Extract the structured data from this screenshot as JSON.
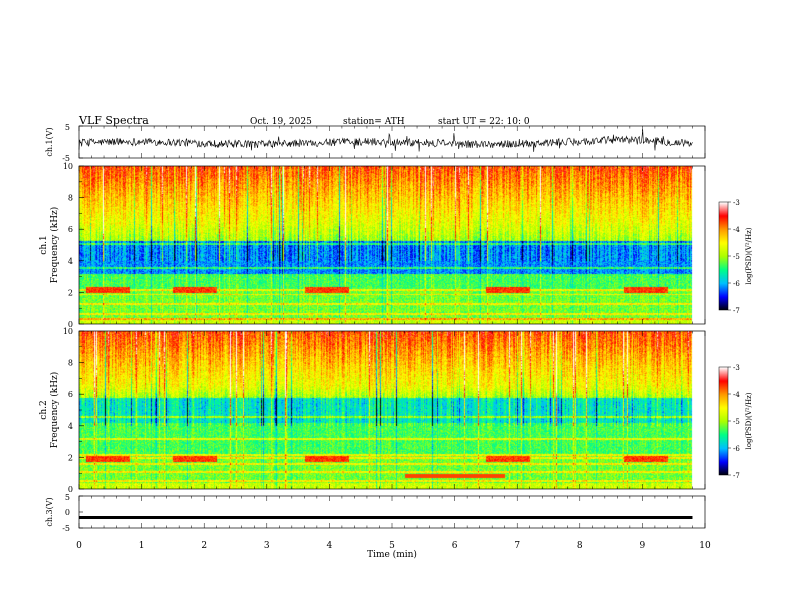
{
  "chart_data": {
    "type": "heatmap",
    "header": {
      "title": "VLF  Spectra",
      "date": "Oct. 19, 2025",
      "station": "station= ATH",
      "start_ut": "start  UT  =    22: 10: 0"
    },
    "x_axis": {
      "label": "Time  (min)",
      "range": [
        0,
        10
      ],
      "ticks": [
        "0",
        "1",
        "2",
        "3",
        "4",
        "5",
        "6",
        "7",
        "8",
        "9",
        "10"
      ]
    },
    "panels": [
      {
        "id": "ch1-waveform",
        "type": "line",
        "ylabel": "ch.1(V)",
        "ylim": [
          -5,
          5
        ],
        "tick_labels": [
          "5",
          "-5"
        ],
        "description_values": {
          "mean_v": -0.3,
          "noise_amplitude_v": 1.2,
          "drift_peak_min": 8.9,
          "drift_peak_v": 0.8
        }
      },
      {
        "id": "ch1-spectrogram",
        "type": "heatmap",
        "ylabel": "ch.1\nFrequency  (kHz)",
        "ylim": [
          0,
          10
        ],
        "tick_labels": [
          "0",
          "2",
          "4",
          "6",
          "8",
          "10"
        ],
        "band_low_khz": 3.2,
        "band_high_khz": 5.3
      },
      {
        "id": "ch2-spectrogram",
        "type": "heatmap",
        "ylabel": "ch.2\nFrequency  (kHz)",
        "ylim": [
          0,
          10
        ],
        "tick_labels": [
          "0",
          "2",
          "4",
          "6",
          "8",
          "10"
        ],
        "band_low_khz": 4.2,
        "band_high_khz": 5.8
      },
      {
        "id": "ch3-waveform",
        "type": "line",
        "ylabel": "ch.3(V)",
        "ylim": [
          -5,
          5
        ],
        "tick_labels": [
          "5",
          "0",
          "-5"
        ],
        "description_values": {
          "constant_v": -1.7
        }
      }
    ],
    "colorbars": [
      {
        "id": "ch1-colorbar",
        "label": "log(PSD)(V²/Hz)",
        "range": [
          -7,
          -3
        ],
        "ticks": [
          "-3",
          "-4",
          "-5",
          "-6",
          "-7"
        ]
      },
      {
        "id": "ch2-colorbar",
        "label": "log(PSD)(V²/Hz)",
        "range": [
          -7,
          -3
        ],
        "ticks": [
          "-3",
          "-4",
          "-5",
          "-6",
          "-7"
        ]
      }
    ],
    "colormap": [
      "#000000",
      "#0000ff",
      "#00bfff",
      "#00ff88",
      "#aaff00",
      "#ffff00",
      "#ff9900",
      "#ff0000",
      "#ffffff"
    ]
  }
}
